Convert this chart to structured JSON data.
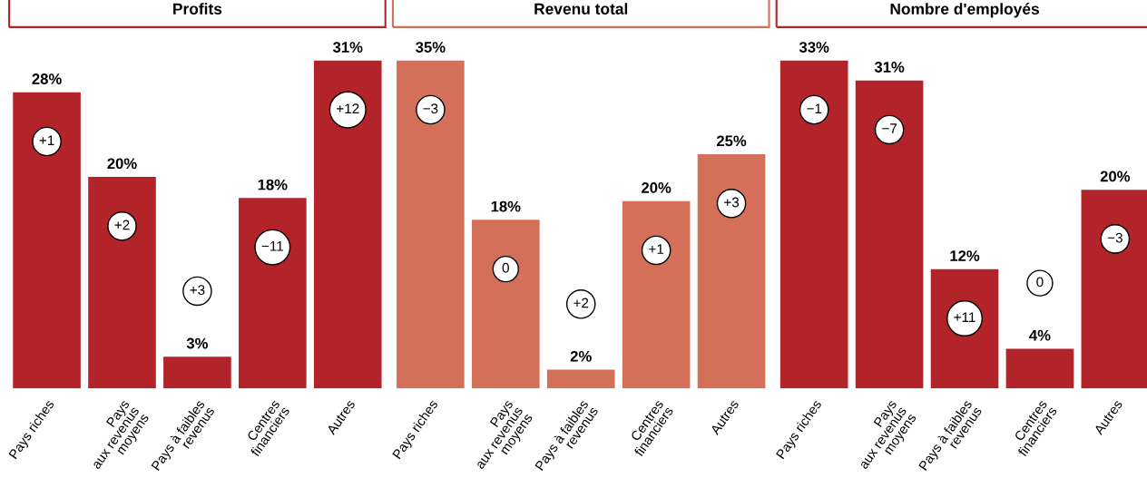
{
  "chart_data": [
    {
      "type": "bar",
      "title": "Profits",
      "categories": [
        "Pays riches",
        "Pays\naux revenus\nmoyens",
        "Pays à faibles\nrevenus",
        "Centres\nfinanciers",
        "Autres"
      ],
      "series": [
        {
          "color": "#b3242a",
          "values": [
            28,
            20,
            3,
            18,
            31
          ],
          "value_labels": [
            "28%",
            "20%",
            "3%",
            "18%",
            "31%"
          ]
        }
      ],
      "tick_labels": "x",
      "annotations": [
        "+1",
        "+2",
        "+3",
        "−11",
        "+12"
      ]
    },
    {
      "type": "bar",
      "title": "Revenu total",
      "categories": [
        "Pays riches",
        "Pays\naux revenus\nmoyens",
        "Pays à faibles\nrevenus",
        "Centres\nfinanciers",
        "Autres"
      ],
      "series": [
        {
          "color": "#d4705a",
          "values": [
            35,
            18,
            2,
            20,
            25
          ],
          "value_labels": [
            "35%",
            "18%",
            "2%",
            "20%",
            "25%"
          ]
        }
      ],
      "tick_labels": "x",
      "annotations": [
        "−3",
        "0",
        "+2",
        "+1",
        "+3"
      ]
    },
    {
      "type": "bar",
      "title": "Nombre d'employés",
      "categories": [
        "Pays riches",
        "Pays\naux revenus\nmoyens",
        "Pays à faibles\nrevenus",
        "Centres\nfinanciers",
        "Autres"
      ],
      "series": [
        {
          "color": "#b3242a",
          "values": [
            33,
            31,
            12,
            4,
            20
          ],
          "value_labels": [
            "33%",
            "31%",
            "12%",
            "4%",
            "20%"
          ]
        }
      ],
      "tick_labels": "x",
      "annotations": [
        "−1",
        "−7",
        "+11",
        "0",
        "−3"
      ]
    }
  ]
}
